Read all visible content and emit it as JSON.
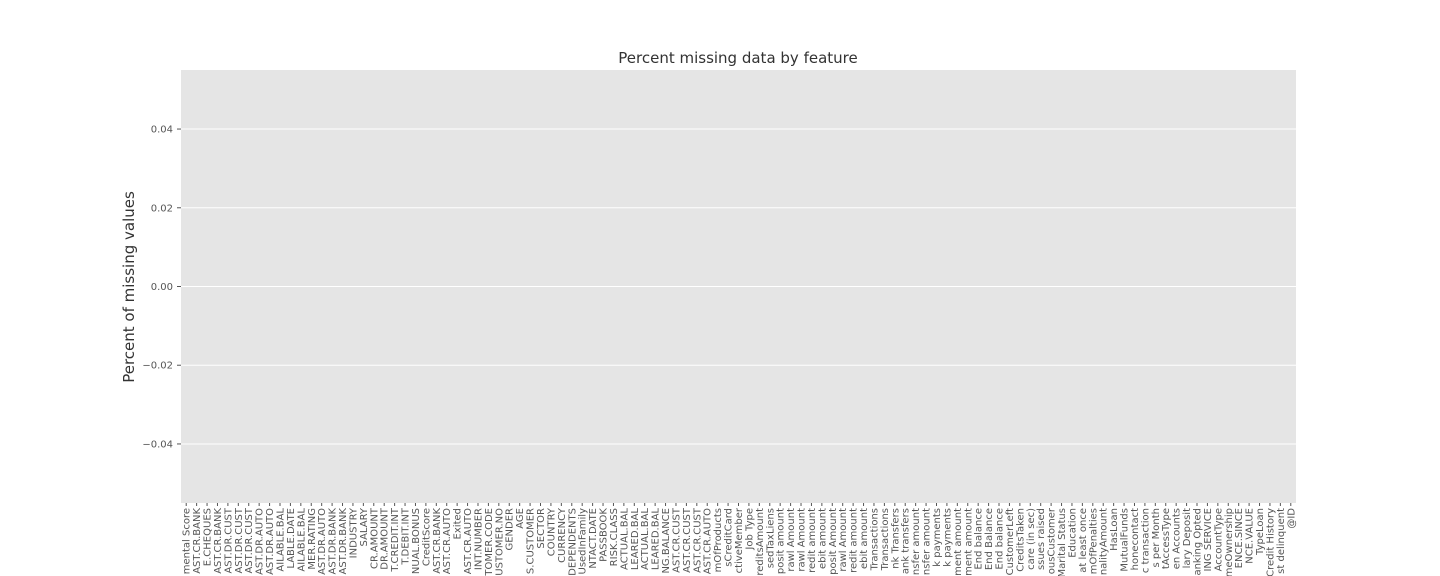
{
  "chart_data": {
    "type": "bar",
    "title": "Percent missing data by feature",
    "ylabel": "Percent of missing values",
    "categories": [
      "mental Score",
      "AST.CR.BANK",
      "E.CHEQUES",
      "AST.CR.BANK",
      "AST.DR.CUST",
      "AST.DR.CUST",
      "AST.DR.CUST",
      "AST.DR.AUTO",
      "AST.DR.AUTO",
      "AILABLE.BAL",
      "LABLE.DATE",
      "AILABLE.BAL",
      "MER.RATING",
      "AST.DR.AUTO",
      "AST.DR.BANK",
      "AST.DR.BANK",
      "INDUSTRY",
      "SALARY",
      "CR.AMOUNT",
      "DR.AMOUNT",
      "T.CREDIT.INT",
      "T.DEBIT.INT",
      "NUAL.BONUS",
      "CreditScore",
      "AST.CR.BANK",
      "AST.CR.AUTO",
      "Exited",
      "AST.CR.AUTO",
      "INT.NUMBER",
      "TOMER.CODE",
      "USTOMER.NO",
      "GENDER",
      "AGE",
      "S.CUSTOMER",
      "SECTOR",
      "COUNTRY",
      "CURRENCY",
      "DEPENDENTS",
      "UsedInFamily",
      "NTACT.DATE",
      "PASSBOOK",
      "RISK.CLASS",
      "ACTUAL.BAL",
      "LEARED.BAL",
      "ACTUAL.BAL",
      "LEARED.BAL",
      "NG.BALANCE",
      "AST.CR.CUST",
      "AST.CR.CUST",
      "AST.CR.CUST",
      "AST.CR.AUTO",
      "mOfProducts",
      "sCreditCard",
      "ctiveMember",
      "Job Type",
      "creditsAmount",
      "sedTaxLiens",
      "posit amount",
      "rawl Amount",
      "rawl Amount",
      "redit amount",
      "ebit amount",
      "posit Amount",
      "rawl Amount",
      "redit amount",
      "ebit amount",
      "Transactions",
      "Transactions",
      "nk Transfers",
      "ank transfers",
      "nsfer amount",
      "nsfer amount",
      "k payments",
      "k payments",
      "ment amount",
      "ment amount",
      "End balance",
      "End Balance",
      "End balance",
      "CustomerLeft",
      "CreditsTaken",
      "care (in sec)",
      "ssues raised",
      "ousCustomer",
      "Marital Status",
      "Education",
      "at least once",
      "mOfPenalties",
      "nalityAmount",
      "HasLoan",
      "MutualFunds",
      "honecontact",
      "c transaction",
      "s per Month",
      "tAccessType",
      "en Accounts",
      "lary Deposit",
      "anking Opted",
      "ING SERVICE",
      "AccountType",
      "meOwnership",
      "ENCE.SINCE",
      "NCE.VALUE",
      "TypeLoan",
      "Credit History",
      "st delinquent",
      "@ID"
    ],
    "values": [
      0,
      0,
      0,
      0,
      0,
      0,
      0,
      0,
      0,
      0,
      0,
      0,
      0,
      0,
      0,
      0,
      0,
      0,
      0,
      0,
      0,
      0,
      0,
      0,
      0,
      0,
      0,
      0,
      0,
      0,
      0,
      0,
      0,
      0,
      0,
      0,
      0,
      0,
      0,
      0,
      0,
      0,
      0,
      0,
      0,
      0,
      0,
      0,
      0,
      0,
      0,
      0,
      0,
      0,
      0,
      0,
      0,
      0,
      0,
      0,
      0,
      0,
      0,
      0,
      0,
      0,
      0,
      0,
      0,
      0,
      0,
      0,
      0,
      0,
      0,
      0,
      0,
      0,
      0,
      0,
      0,
      0,
      0,
      0,
      0,
      0,
      0,
      0,
      0,
      0,
      0,
      0,
      0,
      0,
      0,
      0,
      0,
      0,
      0,
      0,
      0,
      0,
      0,
      0,
      0,
      0,
      0
    ],
    "color": "#4c72b0",
    "ylim": [
      -0.055,
      0.055
    ],
    "yticks": [
      {
        "value": -0.04,
        "label": "−0.04"
      },
      {
        "value": -0.02,
        "label": "−0.02"
      },
      {
        "value": 0,
        "label": "0.00"
      },
      0.02,
      0.04
    ],
    "grid": true
  }
}
